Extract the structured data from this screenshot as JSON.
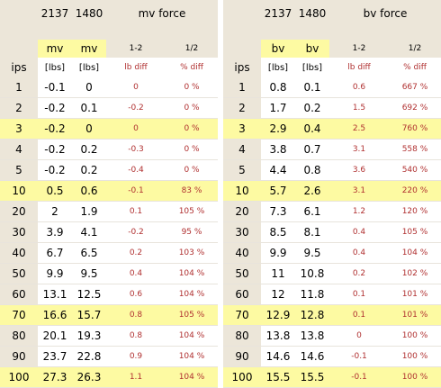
{
  "left": {
    "top": {
      "v1": "2137",
      "v2": "1480",
      "title": "mv force"
    },
    "head": {
      "v1": "mv",
      "v2": "mv",
      "ld": "1-2",
      "pd": "1/2"
    },
    "units": {
      "ips": "ips",
      "v1": "[lbs]",
      "v2": "[lbs]",
      "ld": "lb diff",
      "pd": "% diff"
    },
    "rows": [
      {
        "ips": "1",
        "v1": "-0.1",
        "v2": "0",
        "ld": "0",
        "pd": "0 %"
      },
      {
        "ips": "2",
        "v1": "-0.2",
        "v2": "0.1",
        "ld": "-0.2",
        "pd": "0 %"
      },
      {
        "ips": "3",
        "v1": "-0.2",
        "v2": "0",
        "ld": "0",
        "pd": "0 %"
      },
      {
        "ips": "4",
        "v1": "-0.2",
        "v2": "0.2",
        "ld": "-0.3",
        "pd": "0 %"
      },
      {
        "ips": "5",
        "v1": "-0.2",
        "v2": "0.2",
        "ld": "-0.4",
        "pd": "0 %"
      },
      {
        "ips": "10",
        "v1": "0.5",
        "v2": "0.6",
        "ld": "-0.1",
        "pd": "83 %"
      },
      {
        "ips": "20",
        "v1": "2",
        "v2": "1.9",
        "ld": "0.1",
        "pd": "105 %"
      },
      {
        "ips": "30",
        "v1": "3.9",
        "v2": "4.1",
        "ld": "-0.2",
        "pd": "95 %"
      },
      {
        "ips": "40",
        "v1": "6.7",
        "v2": "6.5",
        "ld": "0.2",
        "pd": "103 %"
      },
      {
        "ips": "50",
        "v1": "9.9",
        "v2": "9.5",
        "ld": "0.4",
        "pd": "104 %"
      },
      {
        "ips": "60",
        "v1": "13.1",
        "v2": "12.5",
        "ld": "0.6",
        "pd": "104 %"
      },
      {
        "ips": "70",
        "v1": "16.6",
        "v2": "15.7",
        "ld": "0.8",
        "pd": "105 %"
      },
      {
        "ips": "80",
        "v1": "20.1",
        "v2": "19.3",
        "ld": "0.8",
        "pd": "104 %"
      },
      {
        "ips": "90",
        "v1": "23.7",
        "v2": "22.8",
        "ld": "0.9",
        "pd": "104 %"
      },
      {
        "ips": "100",
        "v1": "27.3",
        "v2": "26.3",
        "ld": "1.1",
        "pd": "104 %"
      }
    ]
  },
  "right": {
    "top": {
      "v1": "2137",
      "v2": "1480",
      "title": "bv force"
    },
    "head": {
      "v1": "bv",
      "v2": "bv",
      "ld": "1-2",
      "pd": "1/2"
    },
    "units": {
      "ips": "ips",
      "v1": "[lbs]",
      "v2": "[lbs]",
      "ld": "lb diff",
      "pd": "% diff"
    },
    "rows": [
      {
        "ips": "1",
        "v1": "0.8",
        "v2": "0.1",
        "ld": "0.6",
        "pd": "667 %"
      },
      {
        "ips": "2",
        "v1": "1.7",
        "v2": "0.2",
        "ld": "1.5",
        "pd": "692 %"
      },
      {
        "ips": "3",
        "v1": "2.9",
        "v2": "0.4",
        "ld": "2.5",
        "pd": "760 %"
      },
      {
        "ips": "4",
        "v1": "3.8",
        "v2": "0.7",
        "ld": "3.1",
        "pd": "558 %"
      },
      {
        "ips": "5",
        "v1": "4.4",
        "v2": "0.8",
        "ld": "3.6",
        "pd": "540 %"
      },
      {
        "ips": "10",
        "v1": "5.7",
        "v2": "2.6",
        "ld": "3.1",
        "pd": "220 %"
      },
      {
        "ips": "20",
        "v1": "7.3",
        "v2": "6.1",
        "ld": "1.2",
        "pd": "120 %"
      },
      {
        "ips": "30",
        "v1": "8.5",
        "v2": "8.1",
        "ld": "0.4",
        "pd": "105 %"
      },
      {
        "ips": "40",
        "v1": "9.9",
        "v2": "9.5",
        "ld": "0.4",
        "pd": "104 %"
      },
      {
        "ips": "50",
        "v1": "11",
        "v2": "10.8",
        "ld": "0.2",
        "pd": "102 %"
      },
      {
        "ips": "60",
        "v1": "12",
        "v2": "11.8",
        "ld": "0.1",
        "pd": "101 %"
      },
      {
        "ips": "70",
        "v1": "12.9",
        "v2": "12.8",
        "ld": "0.1",
        "pd": "101 %"
      },
      {
        "ips": "80",
        "v1": "13.8",
        "v2": "13.8",
        "ld": "0",
        "pd": "100 %"
      },
      {
        "ips": "90",
        "v1": "14.6",
        "v2": "14.6",
        "ld": "-0.1",
        "pd": "100 %"
      },
      {
        "ips": "100",
        "v1": "15.5",
        "v2": "15.5",
        "ld": "-0.1",
        "pd": "100 %"
      }
    ]
  },
  "highlight_color": "#fdfaa2",
  "header_bg_color": "#ece6d9",
  "diff_text_color": "#b03030"
}
